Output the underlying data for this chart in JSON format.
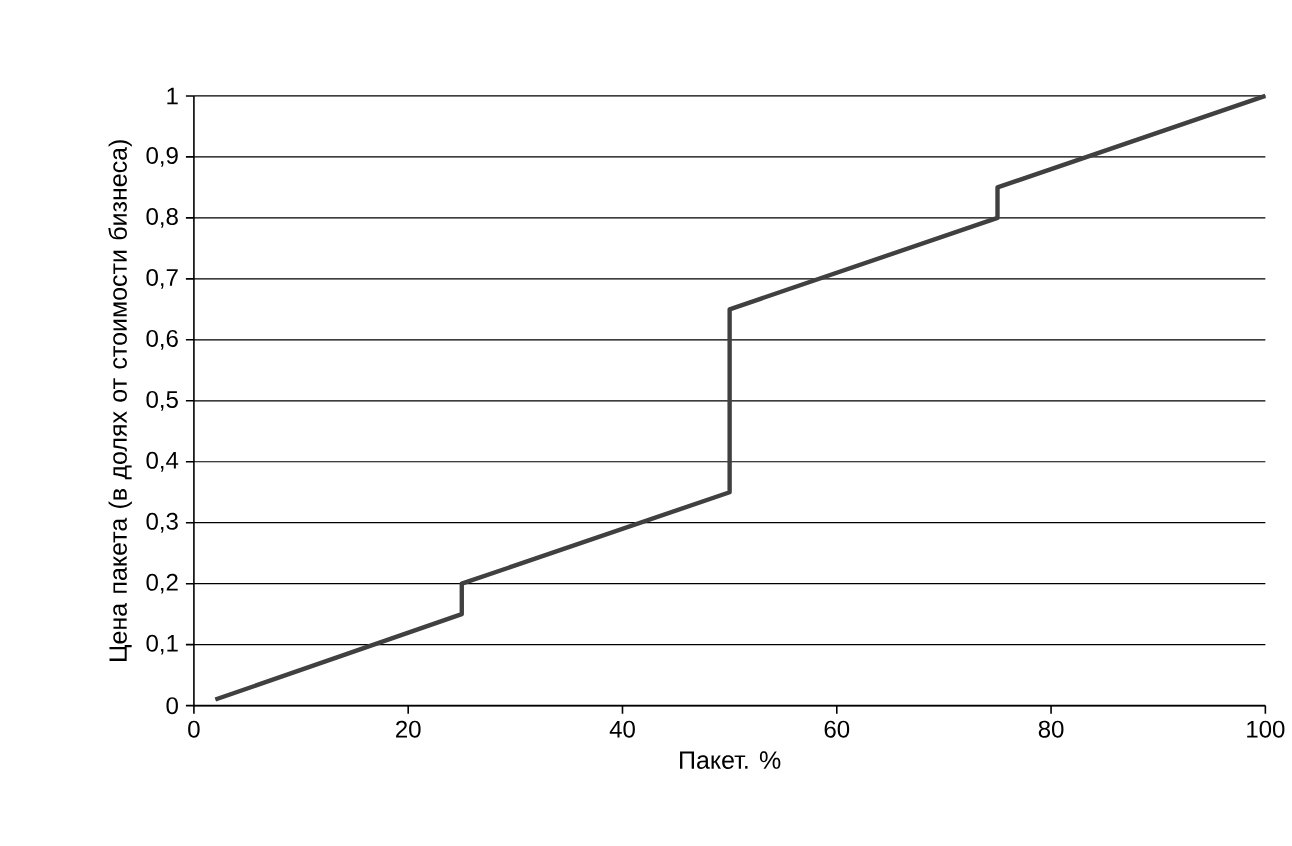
{
  "chart_data": {
    "type": "line",
    "xlabel": "Пакет. %",
    "ylabel": "Цена пакета (в долях от стоимости бизнеса)",
    "series": [
      {
        "color": "#404040",
        "x": [
          2,
          25,
          25,
          50,
          50,
          75,
          75,
          100
        ],
        "values": [
          0.01,
          0.15,
          0.2,
          0.35,
          0.65,
          0.8,
          0.85,
          1
        ]
      }
    ],
    "xlim": [
      0,
      100
    ],
    "xticks": [
      0,
      20,
      40,
      60,
      80,
      100
    ],
    "ylim": [
      0,
      1
    ],
    "yticks": [
      0,
      {
        "value": 0.1,
        "label": "0,1"
      },
      {
        "value": 0.2,
        "label": "0,2"
      },
      {
        "value": 0.3,
        "label": "0,3"
      },
      {
        "value": 0.4,
        "label": "0,4"
      },
      {
        "value": 0.5,
        "label": "0,5"
      },
      {
        "value": 0.6,
        "label": "0,6"
      },
      {
        "value": 0.7,
        "label": "0,7"
      },
      {
        "value": 0.8,
        "label": "0,8"
      },
      {
        "value": 0.9,
        "label": "0,9"
      },
      1
    ],
    "grid": "y",
    "marker": "none",
    "line_style": "solid"
  }
}
